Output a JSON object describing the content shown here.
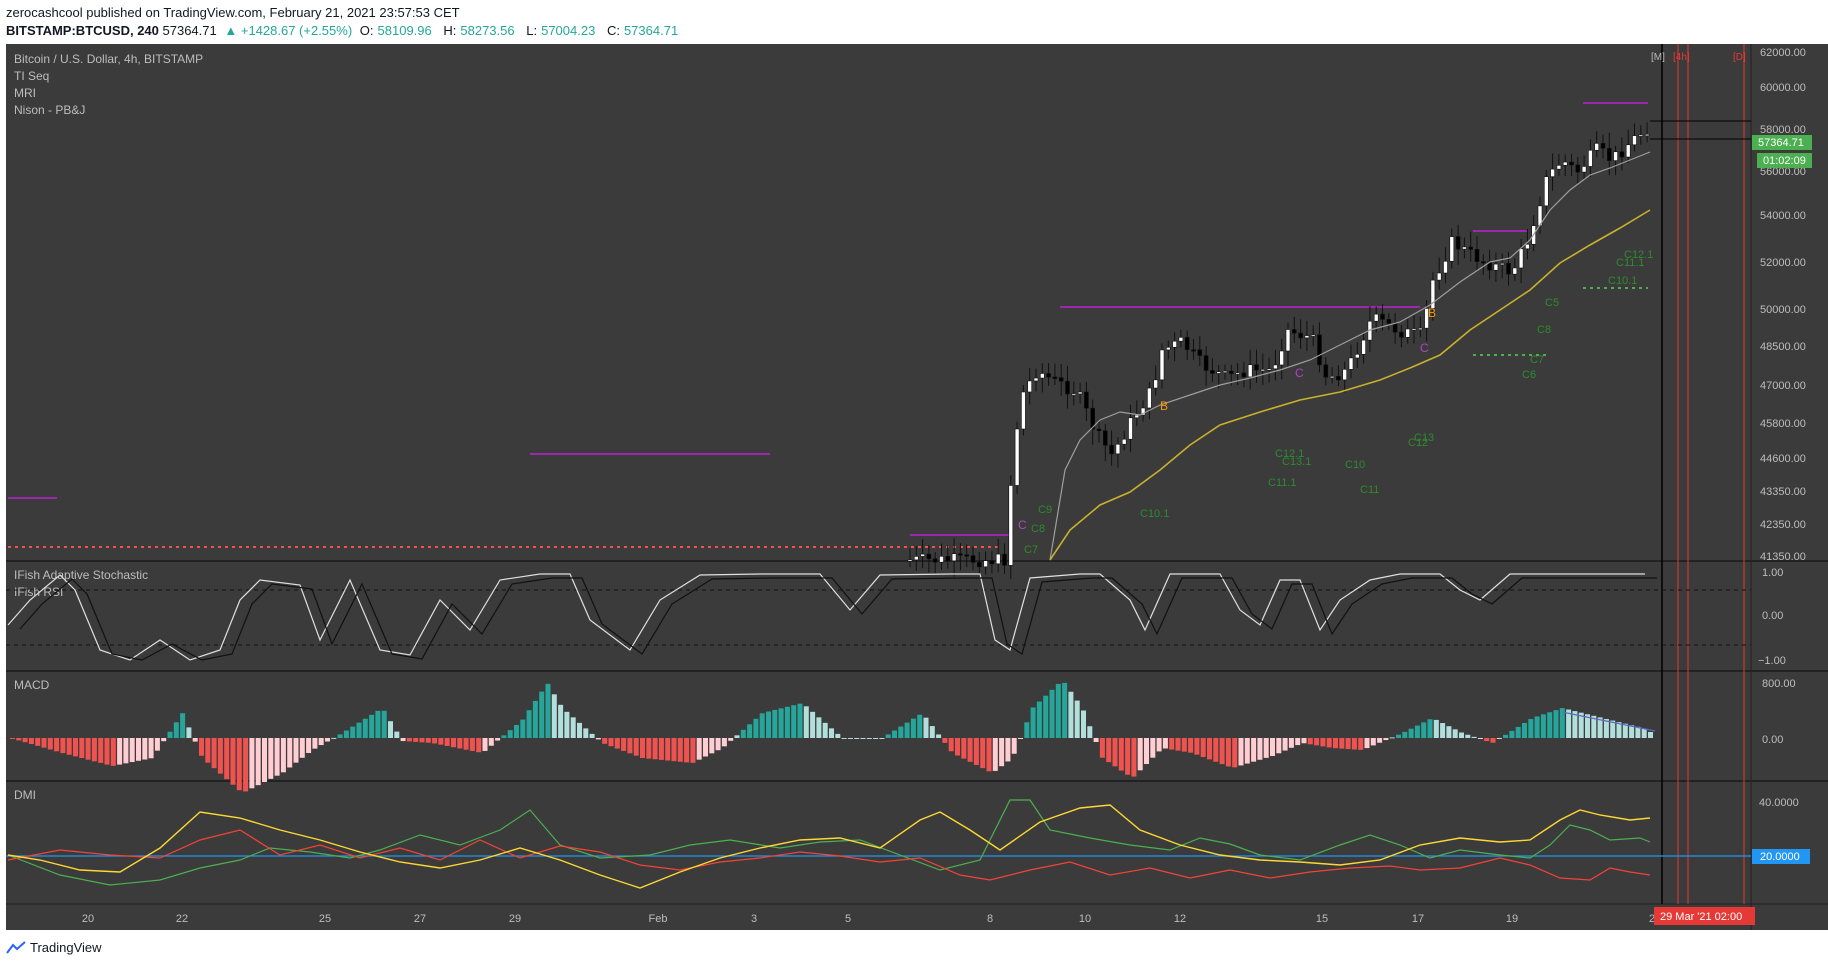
{
  "header": {
    "publisher_line": "zerocashcool published on TradingView.com, February 21, 2021 23:57:53 CET",
    "symbol": "BITSTAMP:BTCUSD, 240",
    "last": "57364.71",
    "change": "▲ +1428.67 (+2.55%)",
    "o_label": "O:",
    "o_val": "58109.96",
    "h_label": "H:",
    "h_val": "58273.56",
    "l_label": "L:",
    "l_val": "57004.23",
    "c_label": "C:",
    "c_val": "57364.71"
  },
  "legend": {
    "title": "Bitcoin / U.S. Dollar, 4h, BITSTAMP",
    "items": [
      "TI Seq",
      "MRI",
      "Nison - PB&J"
    ]
  },
  "price_axis": {
    "ticks": [
      "62000.00",
      "60000.00",
      "58000.00",
      "56000.00",
      "54000.00",
      "52000.00",
      "50000.00",
      "48500.00",
      "47000.00",
      "45800.00",
      "44600.00",
      "43350.00",
      "42350.00",
      "41350.00"
    ],
    "last_price_label": "57364.71",
    "countdown_label": "01:02:09"
  },
  "time_markers": [
    "[M]",
    "[4h]",
    "[D]"
  ],
  "pane_labels": {
    "osc1": "IFish Adaptive Stochastic",
    "osc2": "IFish RSI",
    "macd": "MACD",
    "dmi": "DMI"
  },
  "osc_axis": [
    "1.00",
    "0.00",
    "−1.00"
  ],
  "macd_axis": [
    "800.00",
    "0.00"
  ],
  "dmi_axis": [
    "40.0000"
  ],
  "dmi_level_label": "20.0000",
  "time_axis": [
    "20",
    "22",
    "25",
    "27",
    "29",
    "Feb",
    "3",
    "5",
    "8",
    "10",
    "12",
    "15",
    "17",
    "19",
    "2"
  ],
  "cursor_date": "29 Mar '21   02:00",
  "tv_brand": "TradingView",
  "chart_annotations": [
    "C10.1",
    "C12.1",
    "C13.1",
    "C11.1",
    "C10",
    "C11",
    "C12",
    "C13",
    "C5",
    "C8",
    "C7",
    "C6",
    "C11.1",
    "C12.1",
    "C10.1",
    "C9",
    "C8",
    "C7"
  ],
  "pattern_letters": [
    "C",
    "B",
    "B",
    "C",
    "C"
  ],
  "colors": {
    "panel_bg": "#3b3b3b",
    "bull": "#ffffff",
    "bear": "#000000",
    "ema_fast": "#9e9e9e",
    "ema_slow": "#c9b12b",
    "magenta": "#9c27b0",
    "macd_up": "#26a69a",
    "macd_down": "#ef5350",
    "dmi_plus": "#4caf50",
    "dmi_minus": "#f44336",
    "adx": "#fdd835",
    "level_line": "#2196f3",
    "last_price_bg": "#4caf50"
  }
}
